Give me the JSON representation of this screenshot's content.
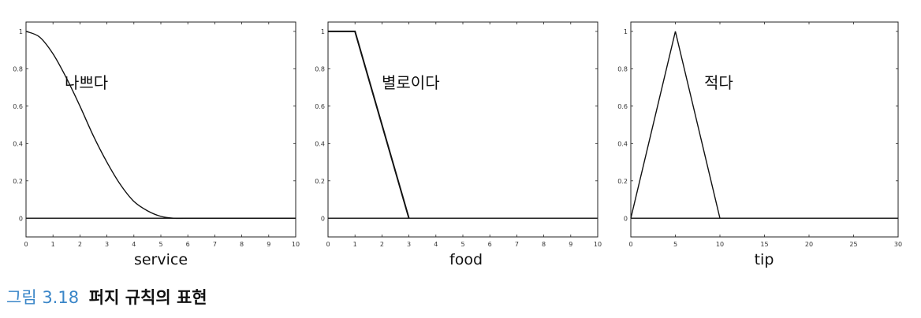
{
  "caption": {
    "label": "그림 3.18",
    "text": "퍼지 규칙의 표현"
  },
  "chart_data": [
    {
      "type": "line",
      "xlabel": "service",
      "annotation": "나쁘다",
      "xlim": [
        0,
        10
      ],
      "ylim": [
        -0.1,
        1.05
      ],
      "xticks": [
        "0",
        "1",
        "2",
        "3",
        "4",
        "5",
        "6",
        "7",
        "8",
        "9",
        "10"
      ],
      "yticks": [
        "0",
        "0.2",
        "0.4",
        "0.6",
        "0.8",
        "1"
      ],
      "series": [
        {
          "x": [
            0,
            0.5,
            1,
            1.5,
            2,
            2.5,
            3,
            3.5,
            4,
            4.5,
            5,
            5.5,
            6,
            7,
            8,
            9,
            10
          ],
          "y": [
            1.0,
            0.97,
            0.88,
            0.75,
            0.6,
            0.44,
            0.3,
            0.18,
            0.09,
            0.04,
            0.01,
            0.0,
            0.0,
            0.0,
            0.0,
            0.0,
            0.0
          ]
        }
      ]
    },
    {
      "type": "line",
      "xlabel": "food",
      "annotation": "별로이다",
      "xlim": [
        0,
        10
      ],
      "ylim": [
        -0.1,
        1.05
      ],
      "xticks": [
        "0",
        "1",
        "2",
        "3",
        "4",
        "5",
        "6",
        "7",
        "8",
        "9",
        "10"
      ],
      "yticks": [
        "0",
        "0.2",
        "0.4",
        "0.6",
        "0.8",
        "1"
      ],
      "series": [
        {
          "x": [
            0,
            1,
            3
          ],
          "y": [
            1,
            1,
            0
          ]
        }
      ]
    },
    {
      "type": "line",
      "xlabel": "tip",
      "annotation": "적다",
      "xlim": [
        0,
        30
      ],
      "ylim": [
        -0.1,
        1.05
      ],
      "xticks": [
        "0",
        "5",
        "10",
        "15",
        "20",
        "25",
        "30"
      ],
      "yticks": [
        "0",
        "0.2",
        "0.4",
        "0.6",
        "0.8",
        "1"
      ],
      "series": [
        {
          "x": [
            0,
            5,
            10
          ],
          "y": [
            0,
            1,
            0
          ]
        }
      ]
    }
  ]
}
